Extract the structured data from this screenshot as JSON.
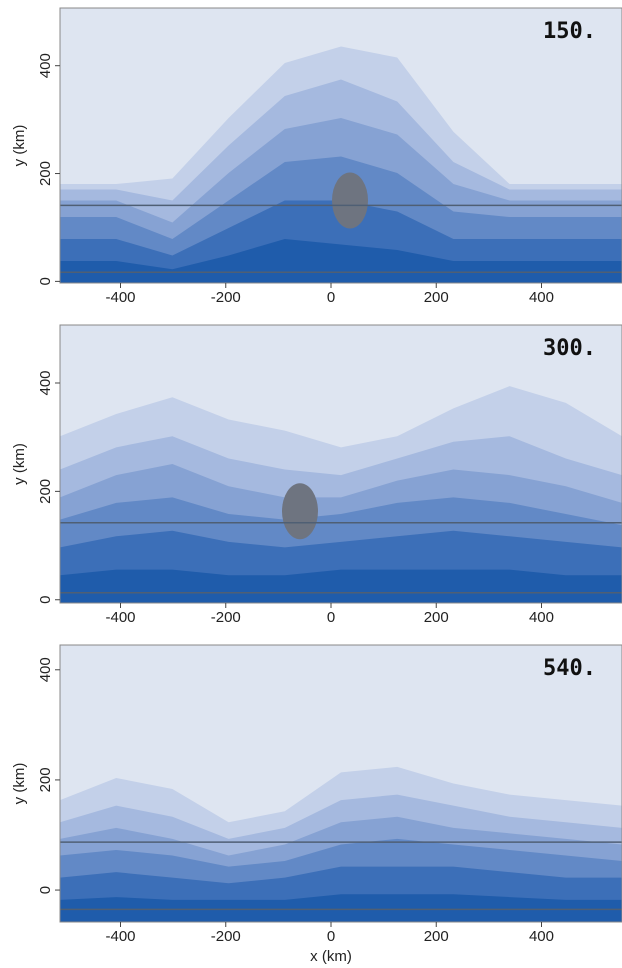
{
  "chart_data": [
    {
      "type": "contour",
      "label": "150.",
      "ylabel": "y (km)",
      "xlim": [
        -515,
        553
      ],
      "ylim": [
        -3,
        507
      ],
      "xticks": [
        -400,
        -200,
        0,
        200,
        400
      ],
      "yticks": [
        0,
        200,
        400
      ],
      "hlines": [
        141,
        17
      ]
    },
    {
      "type": "contour",
      "label": "300.",
      "ylabel": "y (km)",
      "xlim": [
        -515,
        553
      ],
      "ylim": [
        -6,
        507
      ],
      "xticks": [
        -400,
        -200,
        0,
        200,
        400
      ],
      "yticks": [
        0,
        200,
        400
      ],
      "hlines": [
        142,
        13
      ]
    },
    {
      "type": "contour",
      "label": "540.",
      "ylabel": "y (km)",
      "xlabel": "x (km)",
      "xlim": [
        -515,
        553
      ],
      "ylim": [
        -58,
        445
      ],
      "xticks": [
        -400,
        -200,
        0,
        200,
        400
      ],
      "yticks": [
        0,
        200,
        400
      ],
      "hlines": [
        87,
        -35
      ]
    }
  ]
}
